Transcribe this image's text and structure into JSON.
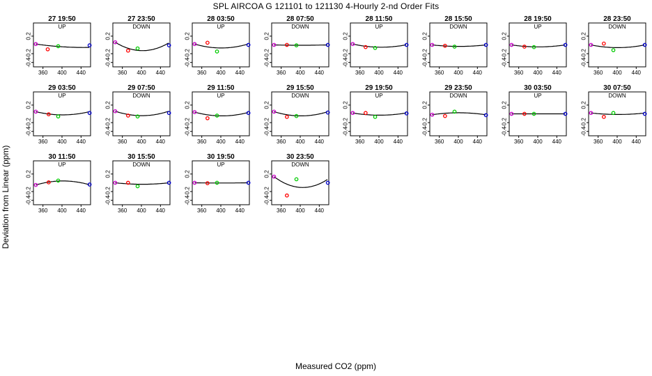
{
  "title": "SPL   AIRCOA G   121101 to 121130   4-Hourly 2-nd Order Fits",
  "xlabel": "Measured CO2 (ppm)",
  "ylabel": "Deviation from Linear (ppm)",
  "colors": {
    "point1": "#cc00cc",
    "point2": "#ff0000",
    "point3": "#00cc00",
    "point4": "#0000cc",
    "curve": "#000000"
  },
  "chart_data": {
    "type": "scatter",
    "x_ticks": [
      360,
      400,
      440
    ],
    "x_tick_labels": [
      "360",
      "400",
      "440"
    ],
    "y_ticks": [
      0.2,
      -0.2,
      -0.4
    ],
    "y_tick_labels": [
      "0.2",
      "-0.2",
      "-0.4"
    ],
    "xlim": [
      340,
      460
    ],
    "ylim": [
      -0.5,
      0.5
    ],
    "panels": [
      {
        "title": "27 19:50",
        "dir": "UP",
        "x": [
          345,
          370,
          392,
          458
        ],
        "y": [
          0.02,
          -0.1,
          -0.03,
          -0.01
        ],
        "fit": [
          0.02,
          -0.00155,
          7.7e-06
        ]
      },
      {
        "title": "27 23:50",
        "dir": "DOWN",
        "x": [
          345,
          372,
          392,
          458
        ],
        "y": [
          0.06,
          -0.13,
          -0.08,
          -0.01
        ],
        "fit": [
          0.06,
          -0.00665,
          5.8e-05
        ]
      },
      {
        "title": "28 03:50",
        "dir": "UP",
        "x": [
          345,
          372,
          392,
          458
        ],
        "y": [
          0.02,
          0.05,
          -0.15,
          0.0
        ],
        "fit": [
          0.02,
          -0.0032,
          2.85e-05
        ]
      },
      {
        "title": "28 07:50",
        "dir": "DOWN",
        "x": [
          345,
          372,
          392,
          458
        ],
        "y": [
          0.0,
          0.0,
          -0.01,
          0.0
        ],
        "fit": [
          0.0,
          -0.0003,
          2.7e-06
        ]
      },
      {
        "title": "28 11:50",
        "dir": "UP",
        "x": [
          345,
          372,
          392,
          458
        ],
        "y": [
          0.02,
          -0.05,
          -0.07,
          0.0
        ],
        "fit": [
          0.02,
          -0.0024,
          2e-05
        ]
      },
      {
        "title": "28 15:50",
        "dir": "DOWN",
        "x": [
          345,
          372,
          392,
          458
        ],
        "y": [
          0.0,
          -0.02,
          -0.04,
          0.0
        ],
        "fit": [
          0.0,
          -0.0012,
          1.06e-05
        ]
      },
      {
        "title": "28 19:50",
        "dir": "UP",
        "x": [
          345,
          372,
          392,
          458
        ],
        "y": [
          0.0,
          -0.04,
          -0.05,
          0.0
        ],
        "fit": [
          0.0,
          -0.0016,
          1.42e-05
        ]
      },
      {
        "title": "28 23:50",
        "dir": "DOWN",
        "x": [
          345,
          372,
          392,
          458
        ],
        "y": [
          0.0,
          0.03,
          -0.12,
          0.0
        ],
        "fit": [
          0.0,
          -0.0022,
          1.95e-05
        ]
      },
      {
        "title": "29 03:50",
        "dir": "UP",
        "x": [
          345,
          372,
          392,
          458
        ],
        "y": [
          0.05,
          -0.01,
          -0.06,
          0.02
        ],
        "fit": [
          0.05,
          -0.0026,
          2.3e-05
        ]
      },
      {
        "title": "29 07:50",
        "dir": "DOWN",
        "x": [
          345,
          372,
          392,
          458
        ],
        "y": [
          0.06,
          -0.04,
          -0.06,
          0.02
        ],
        "fit": [
          0.06,
          -0.0036,
          3.2e-05
        ]
      },
      {
        "title": "29 11:50",
        "dir": "UP",
        "x": [
          345,
          372,
          392,
          458
        ],
        "y": [
          0.04,
          -0.1,
          -0.04,
          0.02
        ],
        "fit": [
          0.04,
          -0.003,
          2.6e-05
        ]
      },
      {
        "title": "29 15:50",
        "dir": "DOWN",
        "x": [
          345,
          372,
          392,
          458
        ],
        "y": [
          0.05,
          -0.07,
          -0.05,
          0.03
        ],
        "fit": [
          0.05,
          -0.0034,
          3e-05
        ]
      },
      {
        "title": "29 19:50",
        "dir": "UP",
        "x": [
          345,
          372,
          392,
          458
        ],
        "y": [
          0.02,
          0.02,
          -0.07,
          0.01
        ],
        "fit": [
          0.02,
          -0.0018,
          1.6e-05
        ]
      },
      {
        "title": "29 23:50",
        "dir": "DOWN",
        "x": [
          345,
          372,
          392,
          458
        ],
        "y": [
          -0.02,
          -0.05,
          0.05,
          -0.03
        ],
        "fit": [
          -0.02,
          0.0016,
          -1.43e-05
        ]
      },
      {
        "title": "30 03:50",
        "dir": "UP",
        "x": [
          345,
          372,
          392,
          458
        ],
        "y": [
          0.0,
          0.0,
          0.0,
          0.0
        ],
        "fit": [
          0.0,
          0.0,
          0.0
        ]
      },
      {
        "title": "30 07:50",
        "dir": "DOWN",
        "x": [
          345,
          372,
          392,
          458
        ],
        "y": [
          0.02,
          -0.07,
          0.02,
          0.0
        ],
        "fit": [
          0.02,
          -0.0012,
          1.05e-05
        ]
      },
      {
        "title": "30 11:50",
        "dir": "UP",
        "x": [
          345,
          372,
          392,
          458
        ],
        "y": [
          -0.05,
          0.01,
          0.05,
          -0.04
        ],
        "fit": [
          -0.05,
          0.0032,
          -2.8e-05
        ]
      },
      {
        "title": "30 15:50",
        "dir": "DOWN",
        "x": [
          345,
          372,
          392,
          458
        ],
        "y": [
          0.0,
          0.0,
          -0.08,
          0.0
        ],
        "fit": [
          0.0,
          -0.0012,
          1.06e-05
        ]
      },
      {
        "title": "30 19:50",
        "dir": "UP",
        "x": [
          345,
          372,
          392,
          458
        ],
        "y": [
          0.0,
          -0.01,
          0.0,
          0.0
        ],
        "fit": [
          0.0,
          -0.0002,
          1.8e-06
        ]
      },
      {
        "title": "30 23:50",
        "dir": "DOWN",
        "x": [
          345,
          372,
          392,
          458
        ],
        "y": [
          0.14,
          -0.29,
          0.08,
          0.0
        ],
        "fit": [
          0.14,
          -0.0082,
          6.8e-05
        ]
      }
    ]
  }
}
